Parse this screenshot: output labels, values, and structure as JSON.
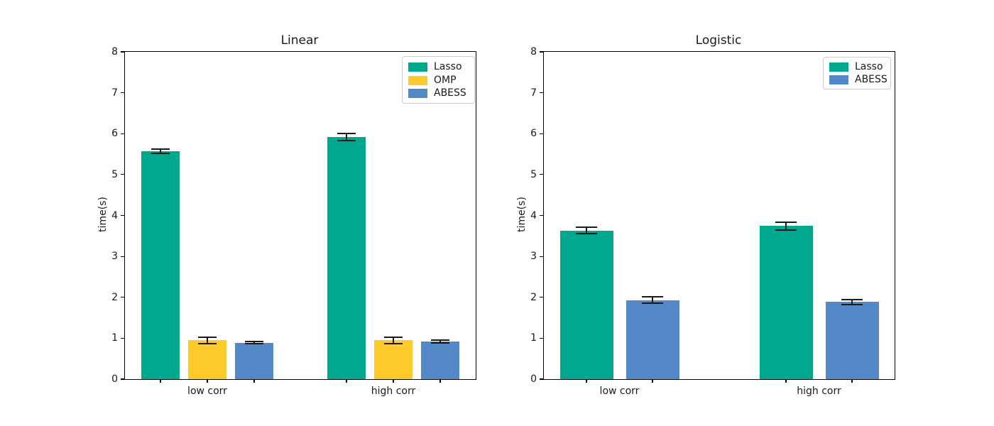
{
  "figure": {
    "background": "#ffffff",
    "text_color": "#1a1a1a",
    "error_bar_color": "#1a1a1a"
  },
  "chart_data": [
    {
      "type": "bar",
      "title": "Linear",
      "xlabel": "",
      "ylabel": "time(s)",
      "categories": [
        "low corr",
        "high corr"
      ],
      "series": [
        {
          "name": "Lasso",
          "color": "#00a88e",
          "values": [
            5.57,
            5.92
          ],
          "errors": [
            0.06,
            0.09
          ]
        },
        {
          "name": "OMP",
          "color": "#ffca2c",
          "values": [
            0.95,
            0.95
          ],
          "errors": [
            0.08,
            0.08
          ]
        },
        {
          "name": "ABESS",
          "color": "#5489c8",
          "values": [
            0.89,
            0.92
          ],
          "errors": [
            0.03,
            0.04
          ]
        }
      ],
      "ylim": [
        0,
        8
      ],
      "yticks": [
        "0",
        "1",
        "2",
        "3",
        "4",
        "5",
        "6",
        "7",
        "8"
      ],
      "grid": false,
      "legend_position": "upper right",
      "error_bars": true
    },
    {
      "type": "bar",
      "title": "Logistic",
      "xlabel": "",
      "ylabel": "time(s)",
      "categories": [
        "low corr",
        "high corr"
      ],
      "series": [
        {
          "name": "Lasso",
          "color": "#00a88e",
          "values": [
            3.63,
            3.74
          ],
          "errors": [
            0.08,
            0.09
          ]
        },
        {
          "name": "ABESS",
          "color": "#5489c8",
          "values": [
            1.93,
            1.89
          ],
          "errors": [
            0.08,
            0.06
          ]
        }
      ],
      "ylim": [
        0,
        8
      ],
      "yticks": [
        "0",
        "1",
        "2",
        "3",
        "4",
        "5",
        "6",
        "7",
        "8"
      ],
      "grid": false,
      "legend_position": "upper right",
      "error_bars": true
    }
  ]
}
